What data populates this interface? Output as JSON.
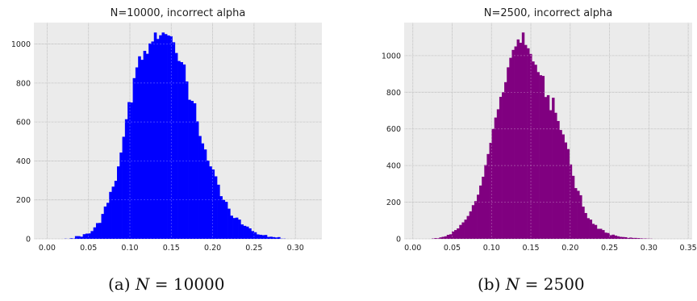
{
  "chart_data": [
    {
      "type": "bar",
      "title": "N=10000, incorrect alpha",
      "xlabel": "",
      "ylabel": "",
      "color": "#0000ff",
      "background": "#ebebeb",
      "grid": true,
      "xlim": [
        -0.016,
        0.332
      ],
      "ylim": [
        0,
        1110
      ],
      "xticks": [
        0.0,
        0.05,
        0.1,
        0.15,
        0.2,
        0.25,
        0.3
      ],
      "xtick_labels": [
        "0.00",
        "0.05",
        "0.10",
        "0.15",
        "0.20",
        "0.25",
        "0.30"
      ],
      "yticks": [
        0,
        200,
        400,
        600,
        800,
        1000
      ],
      "ytick_labels": [
        "0",
        "200",
        "400",
        "600",
        "800",
        "1000"
      ],
      "bin_width": 0.00318,
      "x": [
        0.0033,
        0.0065,
        0.0097,
        0.0129,
        0.0161,
        0.0193,
        0.0224,
        0.0256,
        0.0288,
        0.032,
        0.0352,
        0.0383,
        0.0415,
        0.0447,
        0.0479,
        0.0511,
        0.0542,
        0.0574,
        0.0606,
        0.0638,
        0.067,
        0.0701,
        0.0733,
        0.0765,
        0.0797,
        0.0829,
        0.086,
        0.0892,
        0.0924,
        0.0956,
        0.0988,
        0.1019,
        0.1051,
        0.1083,
        0.1115,
        0.1147,
        0.1178,
        0.121,
        0.1242,
        0.1274,
        0.1306,
        0.1337,
        0.1369,
        0.1401,
        0.1433,
        0.1465,
        0.1496,
        0.1528,
        0.156,
        0.1592,
        0.1624,
        0.1655,
        0.1687,
        0.1719,
        0.1751,
        0.1783,
        0.1814,
        0.1846,
        0.1878,
        0.191,
        0.1942,
        0.1973,
        0.2005,
        0.2037,
        0.2069,
        0.2101,
        0.2132,
        0.2164,
        0.2196,
        0.2228,
        0.226,
        0.2291,
        0.2323,
        0.2355,
        0.2387,
        0.2419,
        0.245,
        0.2482,
        0.2514,
        0.2546,
        0.2578,
        0.2609,
        0.2641,
        0.2673,
        0.2705,
        0.2737,
        0.2768,
        0.28,
        0.2832,
        0.2864,
        0.2896,
        0.2927,
        0.2959,
        0.2991,
        0.3023,
        0.3055,
        0.3086,
        0.3118,
        0.315,
        0.3182
      ],
      "values": [
        0,
        0,
        0,
        0,
        0,
        0,
        1,
        0,
        3,
        2,
        14,
        14,
        11,
        24,
        27,
        28,
        40,
        59,
        81,
        82,
        128,
        166,
        185,
        241,
        268,
        298,
        372,
        443,
        524,
        614,
        702,
        700,
        825,
        880,
        937,
        919,
        965,
        950,
        1003,
        1013,
        1059,
        1026,
        1045,
        1059,
        1051,
        1044,
        1040,
        1009,
        954,
        913,
        907,
        895,
        808,
        714,
        708,
        696,
        603,
        528,
        490,
        459,
        402,
        372,
        356,
        321,
        278,
        219,
        200,
        190,
        155,
        119,
        107,
        109,
        99,
        74,
        67,
        63,
        54,
        40,
        34,
        23,
        21,
        19,
        20,
        10,
        11,
        9,
        7,
        9,
        1,
        1,
        0,
        0,
        0,
        0,
        0,
        0,
        0,
        0,
        0,
        0
      ]
    },
    {
      "type": "bar",
      "title": "N=2500, incorrect alpha",
      "xlabel": "",
      "ylabel": "",
      "color": "#800080",
      "background": "#ebebeb",
      "grid": true,
      "xlim": [
        -0.011,
        0.355
      ],
      "ylim": [
        0,
        1180
      ],
      "xticks": [
        0.0,
        0.05,
        0.1,
        0.15,
        0.2,
        0.25,
        0.3,
        0.35
      ],
      "xtick_labels": [
        "0.00",
        "0.05",
        "0.10",
        "0.15",
        "0.20",
        "0.25",
        "0.30",
        "0.35"
      ],
      "yticks": [
        0,
        200,
        400,
        600,
        800,
        1000
      ],
      "ytick_labels": [
        "0",
        "200",
        "400",
        "600",
        "800",
        "1000"
      ],
      "bin_width": 0.00318,
      "x": [
        0.0033,
        0.0065,
        0.0097,
        0.0129,
        0.0161,
        0.0193,
        0.0224,
        0.0256,
        0.0288,
        0.032,
        0.0352,
        0.0383,
        0.0415,
        0.0447,
        0.0479,
        0.0511,
        0.0542,
        0.0574,
        0.0606,
        0.0638,
        0.067,
        0.0701,
        0.0733,
        0.0765,
        0.0797,
        0.0829,
        0.086,
        0.0892,
        0.0924,
        0.0956,
        0.0988,
        0.1019,
        0.1051,
        0.1083,
        0.1115,
        0.1147,
        0.1178,
        0.121,
        0.1242,
        0.1274,
        0.1306,
        0.1337,
        0.1369,
        0.1401,
        0.1433,
        0.1465,
        0.1496,
        0.1528,
        0.156,
        0.1592,
        0.1624,
        0.1655,
        0.1687,
        0.1719,
        0.1751,
        0.1783,
        0.1814,
        0.1846,
        0.1878,
        0.191,
        0.1942,
        0.1973,
        0.2005,
        0.2037,
        0.2069,
        0.2101,
        0.2132,
        0.2164,
        0.2196,
        0.2228,
        0.226,
        0.2291,
        0.2323,
        0.2355,
        0.2387,
        0.2419,
        0.245,
        0.2482,
        0.2514,
        0.2546,
        0.2578,
        0.2609,
        0.2641,
        0.2673,
        0.2705,
        0.2737,
        0.2768,
        0.28,
        0.2832,
        0.2864,
        0.2896,
        0.2927,
        0.2959,
        0.2991,
        0.3023,
        0.3055,
        0.3086,
        0.3118,
        0.315,
        0.3182
      ],
      "values": [
        0,
        0,
        0,
        0,
        0,
        0,
        0,
        2,
        4,
        3,
        8,
        11,
        14,
        22,
        25,
        40,
        48,
        57,
        76,
        90,
        105,
        125,
        150,
        184,
        206,
        241,
        291,
        339,
        403,
        463,
        524,
        600,
        662,
        707,
        775,
        800,
        855,
        936,
        988,
        1031,
        1050,
        1088,
        1070,
        1126,
        1058,
        1040,
        1009,
        968,
        950,
        910,
        893,
        889,
        774,
        784,
        702,
        770,
        688,
        643,
        594,
        570,
        526,
        490,
        406,
        344,
        277,
        262,
        238,
        176,
        141,
        113,
        105,
        82,
        76,
        55,
        55,
        48,
        34,
        32,
        20,
        23,
        18,
        14,
        11,
        10,
        9,
        5,
        7,
        5,
        5,
        4,
        3,
        2,
        2,
        1,
        1,
        0,
        0,
        0,
        0,
        0
      ]
    }
  ],
  "captions": [
    {
      "prefix": "(a) ",
      "math": "N",
      "rest": " = 10000"
    },
    {
      "prefix": "(b) ",
      "math": "N",
      "rest": " = 2500"
    }
  ]
}
